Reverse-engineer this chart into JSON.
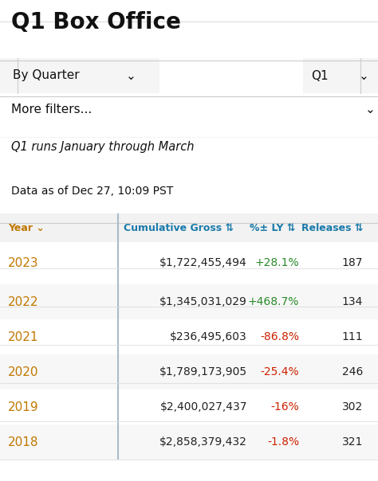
{
  "title": "Q1 Box Office",
  "filter_label": "By Quarter",
  "filter_value": "Q1",
  "more_filters": "More filters...",
  "info_line": "Q1 runs January through March",
  "data_date": "Data as of Dec 27, 10:09 PST",
  "col_headers": [
    "Year",
    "Cumulative Gross",
    "%± LY",
    "Releases"
  ],
  "col_suffixes": [
    " ⌄",
    " ⇅",
    " ⇅",
    " ⇅"
  ],
  "rows": [
    {
      "year": "2023",
      "gross": "$1,722,455,494",
      "pct": "+28.1%",
      "releases": "187",
      "pct_color": "#2a8a2a"
    },
    {
      "year": "2022",
      "gross": "$1,345,031,029",
      "pct": "+468.7%",
      "releases": "134",
      "pct_color": "#2a8a2a"
    },
    {
      "year": "2021",
      "gross": "$236,495,603",
      "pct": "-86.8%",
      "releases": "111",
      "pct_color": "#cc2200"
    },
    {
      "year": "2020",
      "gross": "$1,789,173,905",
      "pct": "-25.4%",
      "releases": "246",
      "pct_color": "#cc2200"
    },
    {
      "year": "2019",
      "gross": "$2,400,027,437",
      "pct": "-16%",
      "releases": "302",
      "pct_color": "#cc2200"
    },
    {
      "year": "2018",
      "gross": "$2,858,379,432",
      "pct": "-1.8%",
      "releases": "321",
      "pct_color": "#cc2200"
    }
  ],
  "year_color": "#c07800",
  "header_year_color": "#c07800",
  "header_teal_color": "#1a7aaa",
  "bg_color": "#ffffff",
  "header_row_bg": "#f2f2f2",
  "row_bg_even": "#ffffff",
  "row_bg_odd": "#f7f7f7",
  "border_color": "#cccccc",
  "left_border_color": "#aabbc8",
  "separator_color": "#dddddd",
  "filter_box_color": "#f5f5f5"
}
